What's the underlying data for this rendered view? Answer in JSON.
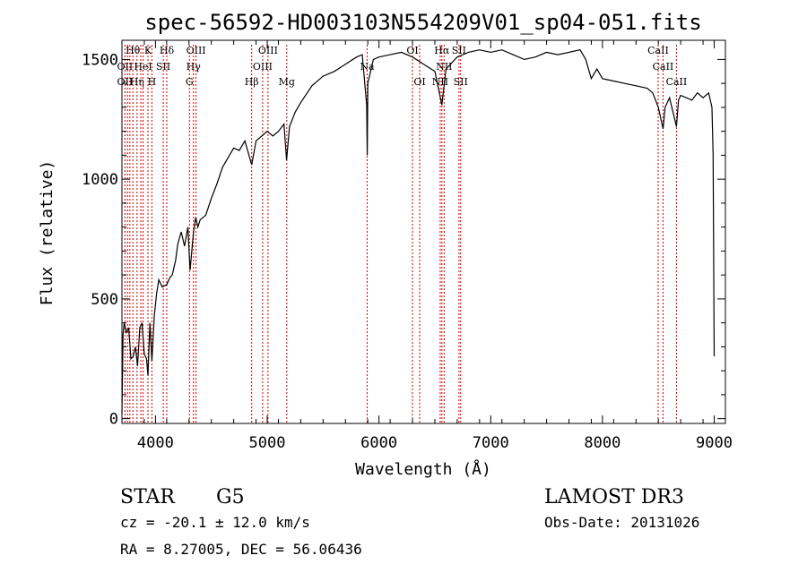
{
  "chart_data": {
    "type": "line",
    "title": "spec-56592-HD003103N554209V01_sp04-051.fits",
    "xlabel": "Wavelength (Å)",
    "ylabel": "Flux (relative)",
    "xlim": [
      3700,
      9100
    ],
    "ylim": [
      -20,
      1580
    ],
    "xticks": [
      4000,
      5000,
      6000,
      7000,
      8000,
      9000
    ],
    "yticks": [
      0,
      500,
      1000,
      1500
    ],
    "grid": false,
    "series": [
      {
        "x": [
          3700,
          3710,
          3720,
          3740,
          3760,
          3780,
          3800,
          3820,
          3840,
          3860,
          3880,
          3900,
          3920,
          3933,
          3950,
          3968,
          3990,
          4010,
          4030,
          4060,
          4101,
          4130,
          4150,
          4180,
          4200,
          4230,
          4260,
          4290,
          4310,
          4340,
          4360,
          4380,
          4400,
          4450,
          4500,
          4550,
          4600,
          4650,
          4700,
          4750,
          4800,
          4861,
          4900,
          4950,
          5000,
          5050,
          5100,
          5150,
          5173,
          5200,
          5250,
          5300,
          5400,
          5500,
          5600,
          5700,
          5800,
          5850,
          5890,
          5895,
          5900,
          5950,
          6000,
          6100,
          6200,
          6300,
          6400,
          6500,
          6563,
          6600,
          6700,
          6800,
          6900,
          7000,
          7100,
          7200,
          7300,
          7400,
          7500,
          7600,
          7700,
          7800,
          7850,
          7900,
          7950,
          8000,
          8100,
          8200,
          8300,
          8400,
          8450,
          8500,
          8542,
          8560,
          8600,
          8662,
          8680,
          8700,
          8750,
          8800,
          8850,
          8900,
          8950,
          8980,
          8990,
          9000
        ],
        "y": [
          20,
          350,
          400,
          360,
          380,
          250,
          260,
          300,
          220,
          380,
          400,
          270,
          250,
          180,
          400,
          240,
          430,
          520,
          580,
          550,
          560,
          590,
          600,
          660,
          730,
          780,
          720,
          800,
          620,
          780,
          840,
          800,
          830,
          850,
          920,
          980,
          1050,
          1090,
          1130,
          1120,
          1160,
          1060,
          1160,
          1180,
          1200,
          1180,
          1200,
          1230,
          1080,
          1220,
          1280,
          1320,
          1390,
          1430,
          1450,
          1480,
          1510,
          1520,
          1310,
          1100,
          1400,
          1500,
          1510,
          1520,
          1530,
          1510,
          1480,
          1450,
          1310,
          1460,
          1510,
          1530,
          1540,
          1530,
          1540,
          1520,
          1500,
          1510,
          1530,
          1520,
          1530,
          1540,
          1500,
          1420,
          1460,
          1420,
          1410,
          1400,
          1390,
          1380,
          1360,
          1300,
          1210,
          1300,
          1340,
          1220,
          1330,
          1350,
          1340,
          1330,
          1360,
          1340,
          1360,
          1300,
          1100,
          260
        ]
      }
    ],
    "lines": [
      {
        "wavelength": 3727,
        "rows": [
          "",
          "OII",
          "OII"
        ]
      },
      {
        "wavelength": 3750,
        "rows": [
          "",
          "",
          ""
        ]
      },
      {
        "wavelength": 3771,
        "rows": [
          "",
          "",
          ""
        ]
      },
      {
        "wavelength": 3798,
        "rows": [
          "Hθ",
          "",
          ""
        ]
      },
      {
        "wavelength": 3835,
        "rows": [
          "",
          "",
          "Hη"
        ]
      },
      {
        "wavelength": 3869,
        "rows": [
          "",
          "",
          ""
        ]
      },
      {
        "wavelength": 3889,
        "rows": [
          "",
          "HeI",
          ""
        ]
      },
      {
        "wavelength": 3933,
        "rows": [
          "K",
          "",
          ""
        ]
      },
      {
        "wavelength": 3968,
        "rows": [
          "",
          "",
          "H"
        ]
      },
      {
        "wavelength": 4070,
        "rows": [
          "",
          "SII",
          ""
        ]
      },
      {
        "wavelength": 4101,
        "rows": [
          "Hδ",
          "",
          ""
        ]
      },
      {
        "wavelength": 4304,
        "rows": [
          "",
          "",
          "G"
        ]
      },
      {
        "wavelength": 4340,
        "rows": [
          "",
          "Hγ",
          ""
        ]
      },
      {
        "wavelength": 4363,
        "rows": [
          "OIII",
          "",
          ""
        ]
      },
      {
        "wavelength": 4861,
        "rows": [
          "",
          "",
          "Hβ"
        ]
      },
      {
        "wavelength": 4959,
        "rows": [
          "",
          "OIII",
          ""
        ]
      },
      {
        "wavelength": 5007,
        "rows": [
          "OIII",
          "",
          ""
        ]
      },
      {
        "wavelength": 5175,
        "rows": [
          "",
          "",
          "Mg"
        ]
      },
      {
        "wavelength": 5894,
        "rows": [
          "",
          "Na",
          ""
        ]
      },
      {
        "wavelength": 6300,
        "rows": [
          "OI",
          "",
          ""
        ]
      },
      {
        "wavelength": 6364,
        "rows": [
          "",
          "",
          "OI"
        ]
      },
      {
        "wavelength": 6548,
        "rows": [
          "",
          "",
          "NII"
        ]
      },
      {
        "wavelength": 6563,
        "rows": [
          "Hα",
          "",
          ""
        ]
      },
      {
        "wavelength": 6583,
        "rows": [
          "",
          "NII",
          ""
        ]
      },
      {
        "wavelength": 6716,
        "rows": [
          "SII",
          "",
          ""
        ]
      },
      {
        "wavelength": 6731,
        "rows": [
          "",
          "",
          "SII"
        ]
      },
      {
        "wavelength": 8498,
        "rows": [
          "CaII",
          "",
          ""
        ]
      },
      {
        "wavelength": 8542,
        "rows": [
          "",
          "CaII",
          ""
        ]
      },
      {
        "wavelength": 8662,
        "rows": [
          "",
          "",
          "CaII"
        ]
      }
    ],
    "line_color": "#cc0000",
    "curve_color": "#000000"
  },
  "info": {
    "object_class": "STAR",
    "subclass": "G5",
    "survey": "LAMOST DR3",
    "cz": "cz = -20.1 ± 12.0 km/s",
    "obs_date": "Obs-Date: 20131026",
    "coords": "RA =   8.27005, DEC =  56.06436"
  }
}
